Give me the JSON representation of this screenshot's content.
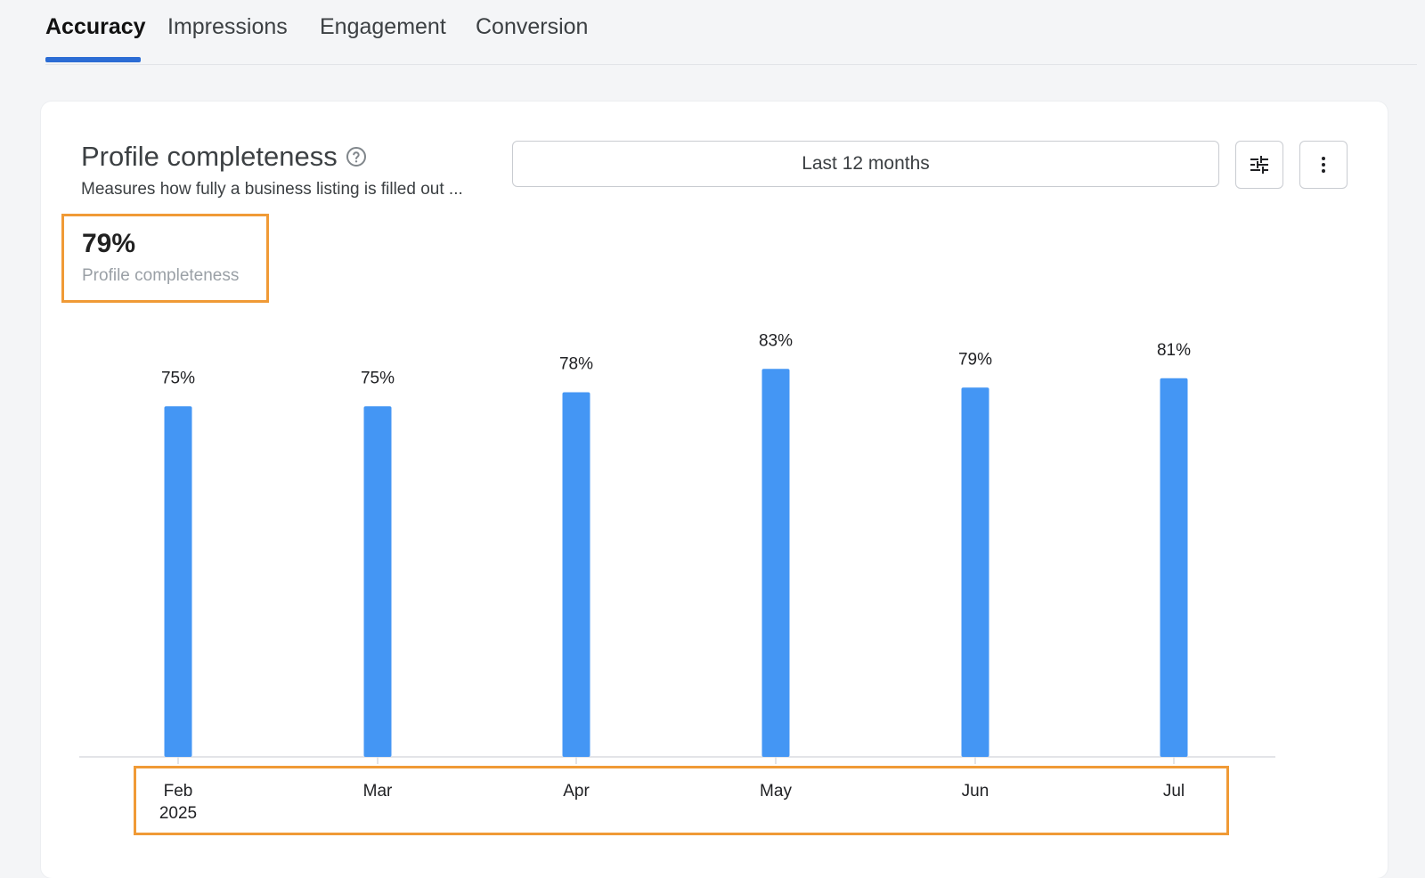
{
  "tabs": [
    {
      "label": "Accuracy",
      "active": true
    },
    {
      "label": "Impressions",
      "active": false
    },
    {
      "label": "Engagement",
      "active": false
    },
    {
      "label": "Conversion",
      "active": false
    }
  ],
  "card": {
    "title": "Profile completeness",
    "subtitle": "Measures how fully a business listing is filled out ...",
    "range_select": "Last 12 months",
    "icons": {
      "help": "help-circle-icon",
      "filter": "tune-sliders-icon",
      "more": "more-vertical-icon"
    }
  },
  "kpi": {
    "value": "79%",
    "label": "Profile completeness"
  },
  "colors": {
    "accent": "#2b6cd4",
    "bar": "#4496f4",
    "highlight": "#f09a36"
  },
  "chart_data": {
    "type": "bar",
    "categories": [
      "Feb",
      "Mar",
      "Apr",
      "May",
      "Jun",
      "Jul"
    ],
    "category_sublabels": [
      "2025",
      "",
      "",
      "",
      "",
      ""
    ],
    "values": [
      75,
      75,
      78,
      83,
      79,
      81
    ],
    "data_labels": [
      "75%",
      "75%",
      "78%",
      "83%",
      "79%",
      "81%"
    ],
    "ylim": [
      0,
      100
    ],
    "grid": false
  }
}
